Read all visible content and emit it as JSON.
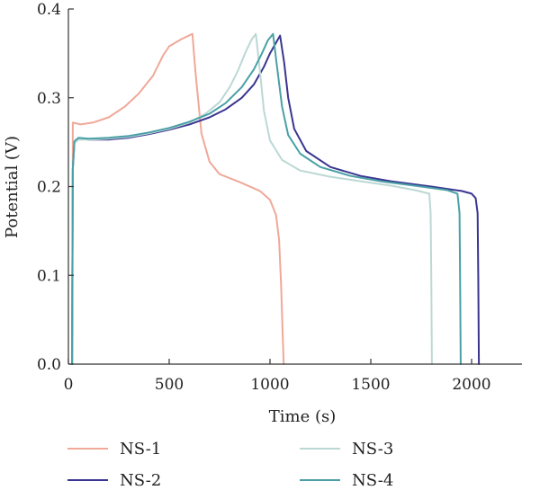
{
  "chart_data": {
    "type": "line",
    "title": "",
    "xlabel": "Time (s)",
    "ylabel": "Potential (V)",
    "xlim": [
      0,
      2250
    ],
    "ylim": [
      0,
      0.4
    ],
    "xticks": [
      0,
      500,
      1000,
      1500,
      2000
    ],
    "xtick_labels": [
      "0",
      "500",
      "1000",
      "1500",
      "2000"
    ],
    "yticks": [
      0,
      0.1,
      0.2,
      0.3,
      0.4
    ],
    "ytick_labels": [
      "0.0",
      "0.1",
      "0.2",
      "0.3",
      "0.4"
    ],
    "grid": false,
    "legend_position": "bottom",
    "series": [
      {
        "name": "NS-1",
        "color": "#f0a898",
        "points": [
          [
            20,
            0.0
          ],
          [
            22,
            0.272
          ],
          [
            60,
            0.27
          ],
          [
            120,
            0.272
          ],
          [
            200,
            0.278
          ],
          [
            280,
            0.29
          ],
          [
            350,
            0.305
          ],
          [
            420,
            0.325
          ],
          [
            470,
            0.348
          ],
          [
            500,
            0.358
          ],
          [
            560,
            0.366
          ],
          [
            615,
            0.372
          ],
          [
            630,
            0.33
          ],
          [
            660,
            0.26
          ],
          [
            700,
            0.228
          ],
          [
            750,
            0.214
          ],
          [
            850,
            0.205
          ],
          [
            950,
            0.195
          ],
          [
            1000,
            0.185
          ],
          [
            1030,
            0.168
          ],
          [
            1045,
            0.14
          ],
          [
            1055,
            0.09
          ],
          [
            1062,
            0.04
          ],
          [
            1068,
            0.0
          ]
        ]
      },
      {
        "name": "NS-2",
        "color": "#3a3590",
        "points": [
          [
            18,
            0.0
          ],
          [
            22,
            0.22
          ],
          [
            30,
            0.25
          ],
          [
            50,
            0.254
          ],
          [
            100,
            0.253
          ],
          [
            200,
            0.253
          ],
          [
            300,
            0.255
          ],
          [
            400,
            0.259
          ],
          [
            500,
            0.264
          ],
          [
            600,
            0.27
          ],
          [
            700,
            0.278
          ],
          [
            780,
            0.287
          ],
          [
            860,
            0.3
          ],
          [
            920,
            0.315
          ],
          [
            970,
            0.335
          ],
          [
            1000,
            0.35
          ],
          [
            1030,
            0.362
          ],
          [
            1050,
            0.37
          ],
          [
            1070,
            0.34
          ],
          [
            1090,
            0.3
          ],
          [
            1120,
            0.265
          ],
          [
            1180,
            0.24
          ],
          [
            1300,
            0.222
          ],
          [
            1450,
            0.212
          ],
          [
            1600,
            0.206
          ],
          [
            1800,
            0.2
          ],
          [
            1950,
            0.195
          ],
          [
            2000,
            0.192
          ],
          [
            2020,
            0.187
          ],
          [
            2030,
            0.17
          ],
          [
            2033,
            0.1
          ],
          [
            2036,
            0.0
          ]
        ]
      },
      {
        "name": "NS-3",
        "color": "#bcd8d4",
        "points": [
          [
            18,
            0.0
          ],
          [
            22,
            0.22
          ],
          [
            30,
            0.249
          ],
          [
            50,
            0.253
          ],
          [
            100,
            0.253
          ],
          [
            200,
            0.254
          ],
          [
            300,
            0.256
          ],
          [
            400,
            0.26
          ],
          [
            500,
            0.265
          ],
          [
            600,
            0.272
          ],
          [
            680,
            0.282
          ],
          [
            750,
            0.295
          ],
          [
            800,
            0.312
          ],
          [
            840,
            0.33
          ],
          [
            880,
            0.352
          ],
          [
            910,
            0.366
          ],
          [
            930,
            0.372
          ],
          [
            950,
            0.33
          ],
          [
            970,
            0.285
          ],
          [
            1000,
            0.252
          ],
          [
            1060,
            0.23
          ],
          [
            1150,
            0.218
          ],
          [
            1300,
            0.211
          ],
          [
            1450,
            0.206
          ],
          [
            1600,
            0.201
          ],
          [
            1720,
            0.196
          ],
          [
            1790,
            0.192
          ],
          [
            1797,
            0.17
          ],
          [
            1800,
            0.1
          ],
          [
            1803,
            0.0
          ]
        ]
      },
      {
        "name": "NS-4",
        "color": "#4aa0a6",
        "points": [
          [
            18,
            0.0
          ],
          [
            22,
            0.22
          ],
          [
            30,
            0.251
          ],
          [
            50,
            0.255
          ],
          [
            100,
            0.254
          ],
          [
            200,
            0.255
          ],
          [
            300,
            0.257
          ],
          [
            400,
            0.261
          ],
          [
            500,
            0.266
          ],
          [
            600,
            0.273
          ],
          [
            700,
            0.282
          ],
          [
            780,
            0.294
          ],
          [
            860,
            0.312
          ],
          [
            920,
            0.332
          ],
          [
            960,
            0.35
          ],
          [
            990,
            0.365
          ],
          [
            1015,
            0.372
          ],
          [
            1035,
            0.335
          ],
          [
            1060,
            0.29
          ],
          [
            1090,
            0.258
          ],
          [
            1150,
            0.237
          ],
          [
            1250,
            0.222
          ],
          [
            1400,
            0.212
          ],
          [
            1550,
            0.206
          ],
          [
            1750,
            0.2
          ],
          [
            1880,
            0.196
          ],
          [
            1930,
            0.192
          ],
          [
            1940,
            0.17
          ],
          [
            1943,
            0.1
          ],
          [
            1946,
            0.0
          ]
        ]
      }
    ]
  }
}
